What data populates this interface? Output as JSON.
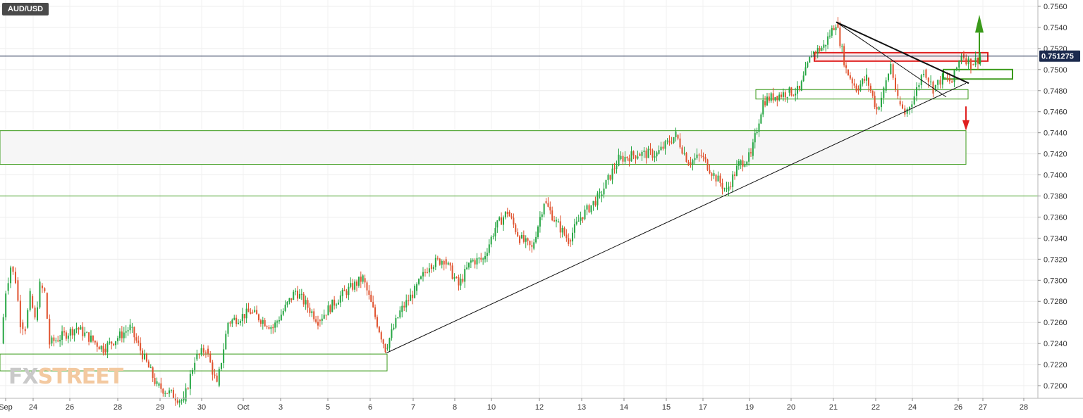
{
  "chart_data": {
    "type": "candlestick",
    "symbol": "AUD/USD",
    "current_price": "0.751275",
    "y_axis": {
      "ylim": [
        0.7188,
        0.7566
      ],
      "ticks": [
        "0.7200",
        "0.7220",
        "0.7240",
        "0.7260",
        "0.7280",
        "0.7300",
        "0.7320",
        "0.7340",
        "0.7360",
        "0.7380",
        "0.7400",
        "0.7420",
        "0.7440",
        "0.7460",
        "0.7480",
        "0.7500",
        "0.7520",
        "0.7540",
        "0.7560"
      ]
    },
    "x_axis": {
      "labels": [
        "Sep",
        "24",
        "26",
        "28",
        "29",
        "30",
        "Oct",
        "3",
        "5",
        "6",
        "7",
        "8",
        "10",
        "12",
        "13",
        "14",
        "15",
        "17",
        "19",
        "20",
        "21",
        "22",
        "24",
        "26",
        "27",
        "28"
      ]
    },
    "grid": true,
    "watermark": {
      "part1": "FX",
      "part2": "STREET"
    },
    "colors": {
      "up": "#26a643",
      "down": "#e0522e",
      "support": "#3a9a1a",
      "resistance": "#e02020",
      "trend": "#111111",
      "price_line": "#1b2a4e"
    },
    "price_path": [
      [
        0,
        0.724
      ],
      [
        1,
        0.729
      ],
      [
        2,
        0.7313
      ],
      [
        3,
        0.73
      ],
      [
        4,
        0.726
      ],
      [
        5,
        0.7255
      ],
      [
        6,
        0.7285
      ],
      [
        7,
        0.7262
      ],
      [
        8,
        0.7295
      ],
      [
        9,
        0.7288
      ],
      [
        10,
        0.724
      ],
      [
        11,
        0.7255
      ],
      [
        12,
        0.7235
      ],
      [
        13,
        0.7255
      ],
      [
        14,
        0.72
      ],
      [
        15,
        0.7185
      ],
      [
        16,
        0.7225
      ],
      [
        17,
        0.7235
      ],
      [
        18,
        0.72
      ],
      [
        19,
        0.726
      ],
      [
        20,
        0.727
      ],
      [
        21,
        0.7255
      ],
      [
        22,
        0.729
      ],
      [
        23,
        0.7262
      ],
      [
        24,
        0.7285
      ],
      [
        25,
        0.7302
      ],
      [
        26,
        0.7235
      ],
      [
        27,
        0.727
      ],
      [
        28,
        0.729
      ],
      [
        29,
        0.7315
      ],
      [
        30,
        0.732
      ],
      [
        31,
        0.7295
      ],
      [
        32,
        0.7318
      ],
      [
        33,
        0.732
      ],
      [
        34,
        0.735
      ],
      [
        35,
        0.7365
      ],
      [
        36,
        0.734
      ],
      [
        37,
        0.733
      ],
      [
        38,
        0.7375
      ],
      [
        39,
        0.7355
      ],
      [
        40,
        0.7338
      ],
      [
        41,
        0.736
      ],
      [
        42,
        0.738
      ],
      [
        43,
        0.7415
      ],
      [
        44,
        0.742
      ],
      [
        45,
        0.742
      ],
      [
        46,
        0.7438
      ],
      [
        47,
        0.7412
      ],
      [
        48,
        0.7418
      ],
      [
        49,
        0.74
      ],
      [
        50,
        0.7385
      ],
      [
        51,
        0.741
      ],
      [
        52,
        0.7418
      ],
      [
        53,
        0.747
      ],
      [
        54,
        0.7475
      ],
      [
        55,
        0.7478
      ],
      [
        56,
        0.748
      ],
      [
        57,
        0.7515
      ],
      [
        58,
        0.7522
      ],
      [
        59,
        0.7545
      ],
      [
        60,
        0.75
      ],
      [
        61,
        0.7482
      ],
      [
        62,
        0.7492
      ],
      [
        63,
        0.7462
      ],
      [
        64,
        0.748
      ],
      [
        65,
        0.7505
      ],
      [
        66,
        0.747
      ],
      [
        67,
        0.7458
      ],
      [
        68,
        0.7475
      ],
      [
        69,
        0.75
      ],
      [
        70,
        0.7482
      ],
      [
        71,
        0.7492
      ],
      [
        72,
        0.7488
      ],
      [
        73,
        0.7515
      ],
      [
        74,
        0.7505
      ],
      [
        75,
        0.7512
      ]
    ]
  }
}
